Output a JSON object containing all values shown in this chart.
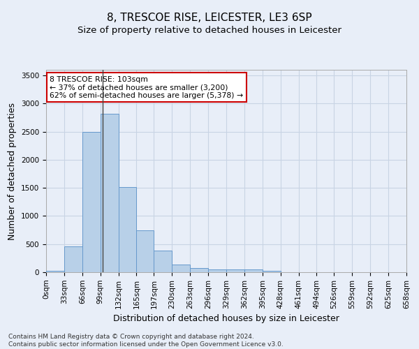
{
  "title": "8, TRESCOE RISE, LEICESTER, LE3 6SP",
  "subtitle": "Size of property relative to detached houses in Leicester",
  "xlabel": "Distribution of detached houses by size in Leicester",
  "ylabel": "Number of detached properties",
  "bin_edges": [
    0,
    33,
    66,
    99,
    132,
    165,
    197,
    230,
    263,
    296,
    329,
    362,
    395,
    428,
    461,
    494,
    526,
    559,
    592,
    625,
    658
  ],
  "bin_labels": [
    "0sqm",
    "33sqm",
    "66sqm",
    "99sqm",
    "132sqm",
    "165sqm",
    "197sqm",
    "230sqm",
    "263sqm",
    "296sqm",
    "329sqm",
    "362sqm",
    "395sqm",
    "428sqm",
    "461sqm",
    "494sqm",
    "526sqm",
    "559sqm",
    "592sqm",
    "625sqm",
    "658sqm"
  ],
  "bar_heights": [
    20,
    460,
    2500,
    2820,
    1520,
    740,
    390,
    140,
    70,
    50,
    50,
    50,
    20,
    0,
    0,
    0,
    0,
    0,
    0,
    0
  ],
  "bar_color": "#b8d0e8",
  "bar_edge_color": "#6699cc",
  "grid_color": "#c8d4e4",
  "background_color": "#e8eef8",
  "annotation_box_color": "#ffffff",
  "annotation_border_color": "#cc0000",
  "annotation_text_line1": "8 TRESCOE RISE: 103sqm",
  "annotation_text_line2": "← 37% of detached houses are smaller (3,200)",
  "annotation_text_line3": "62% of semi-detached houses are larger (5,378) →",
  "property_line_x": 103,
  "ylim": [
    0,
    3600
  ],
  "yticks": [
    0,
    500,
    1000,
    1500,
    2000,
    2500,
    3000,
    3500
  ],
  "title_fontsize": 11,
  "subtitle_fontsize": 9.5,
  "axis_label_fontsize": 9,
  "tick_fontsize": 7.5,
  "annotation_fontsize": 7.8,
  "footer_fontsize": 6.5,
  "footer_line1": "Contains HM Land Registry data © Crown copyright and database right 2024.",
  "footer_line2": "Contains public sector information licensed under the Open Government Licence v3.0."
}
